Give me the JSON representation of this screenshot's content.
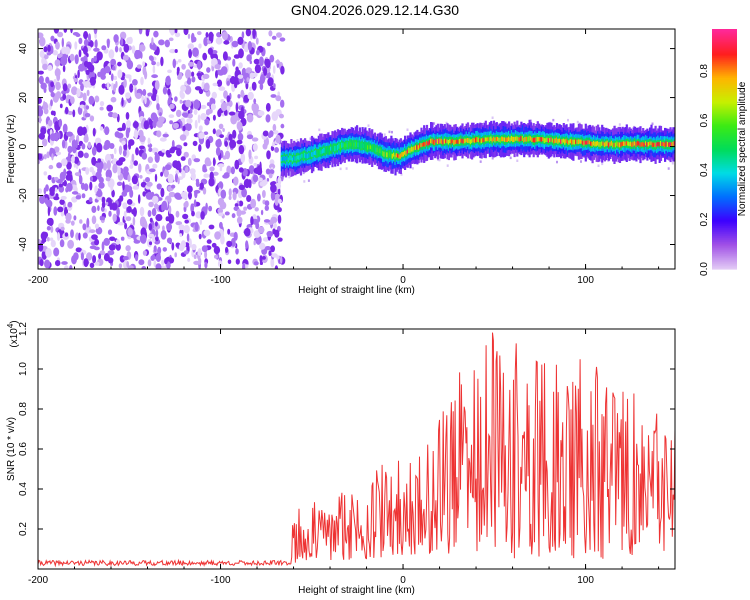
{
  "title": "GN04.2026.029.12.14.G30",
  "chart_data": [
    {
      "type": "heatmap",
      "xlabel": "Height of straight line (km)",
      "ylabel": "Frequency (Hz)",
      "xlim": [
        -200,
        149
      ],
      "ylim": [
        -50,
        48
      ],
      "xticks": [
        -200,
        -100,
        0,
        100
      ],
      "xtick_labels": [
        "-200",
        "-100",
        "0",
        "100"
      ],
      "yticks": [
        -40,
        -20,
        0,
        20,
        40
      ],
      "ytick_labels": [
        "-40",
        "-20",
        "0",
        "20",
        "40"
      ],
      "colorbar": {
        "label": "Normalized spectral amplitude",
        "range": [
          0,
          0.97
        ],
        "ticks": [
          0.0,
          0.2,
          0.4,
          0.6,
          0.8
        ],
        "tick_labels": [
          "0.0",
          "0.2",
          "0.4",
          "0.6",
          "0.8"
        ]
      },
      "noise_region_x": [
        -200,
        -67
      ],
      "ridge": {
        "x": [
          -67,
          -60,
          -50,
          -40,
          -30,
          -20,
          -10,
          -3,
          5,
          15,
          30,
          50,
          70,
          90,
          110,
          130,
          149
        ],
        "frequency": [
          -5,
          -5,
          -3,
          -1,
          1,
          0,
          -3,
          -4,
          -1,
          2,
          2,
          3,
          3,
          2,
          1,
          1,
          1
        ],
        "amplitude": [
          0.35,
          0.4,
          0.45,
          0.5,
          0.55,
          0.55,
          0.6,
          0.8,
          0.85,
          0.9,
          0.85,
          0.75,
          0.8,
          0.85,
          0.8,
          0.8,
          0.9
        ]
      }
    },
    {
      "type": "line",
      "xlabel": "Height of straight line (km)",
      "ylabel": "SNR (10 * v/v)",
      "y_multiplier": "(x10",
      "y_multiplier_exp": "4",
      "xlim": [
        -200,
        149
      ],
      "ylim": [
        0,
        1.2
      ],
      "xticks": [
        -200,
        -100,
        0,
        100
      ],
      "xtick_labels": [
        "-200",
        "-100",
        "0",
        "100"
      ],
      "yticks": [
        0.2,
        0.4,
        0.6,
        0.8,
        1.0,
        1.2
      ],
      "ytick_labels": [
        "0.2",
        "0.4",
        "0.6",
        "0.8",
        "1.0",
        "1.2"
      ],
      "color": "#ee3333",
      "baseline": 0.03,
      "envelope": {
        "x": [
          -200,
          -62,
          -60,
          -40,
          -20,
          0,
          18,
          20,
          50,
          80,
          100,
          120,
          149
        ],
        "max": [
          0.05,
          0.05,
          0.3,
          0.36,
          0.5,
          0.55,
          0.65,
          0.92,
          1.2,
          1.06,
          1.05,
          0.96,
          0.7
        ],
        "min": [
          0.02,
          0.02,
          0.03,
          0.04,
          0.05,
          0.06,
          0.08,
          0.08,
          0.05,
          0.05,
          0.05,
          0.05,
          0.1
        ]
      }
    }
  ]
}
